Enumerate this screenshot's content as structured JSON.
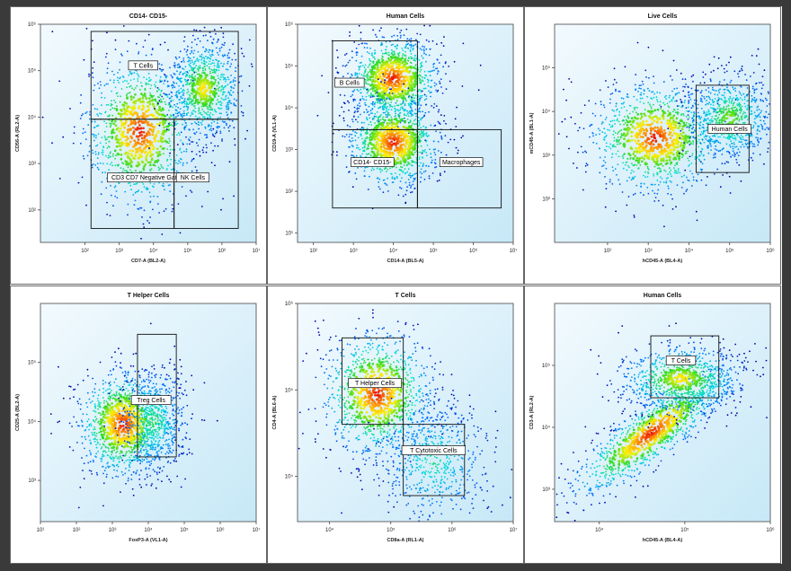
{
  "chart_data": [
    {
      "type": "scatter",
      "subtype": "flow-cytometry-density",
      "title": "CD14- CD15-",
      "xlabel": "CD7-A (BL2-A)",
      "ylabel": "CD56-A (RL2-A)",
      "xscale": "log",
      "yscale": "log",
      "xlim": [
        5,
        10000000
      ],
      "ylim": [
        20,
        1000000
      ],
      "xticks": [
        {
          "v": 100,
          "label": "10²"
        },
        {
          "v": 1000,
          "label": "10³"
        },
        {
          "v": 10000,
          "label": "10⁴"
        },
        {
          "v": 100000,
          "label": "10⁵"
        },
        {
          "v": 1000000,
          "label": "10⁶"
        },
        {
          "v": 10000000,
          "label": "10⁷"
        }
      ],
      "yticks": [
        {
          "v": 100,
          "label": "10²"
        },
        {
          "v": 1000,
          "label": "10³"
        },
        {
          "v": 10000,
          "label": "10⁴"
        },
        {
          "v": 100000,
          "label": "10⁵"
        },
        {
          "v": 1000000,
          "label": "10⁶"
        }
      ],
      "clusters": [
        {
          "x": 4000,
          "y": 5000,
          "sx": 0.45,
          "sy": 0.45,
          "intensity": 1.0
        },
        {
          "x": 300000,
          "y": 40000,
          "sx": 0.3,
          "sy": 0.3,
          "intensity": 0.8
        }
      ],
      "gates": [
        {
          "label": "T Cells",
          "x": [
            150,
            3000000
          ],
          "y": [
            9000,
            700000
          ],
          "label_at": [
            5000,
            130000
          ]
        },
        {
          "label": "CD3 CD7 Negative Gate",
          "x": [
            150,
            40000
          ],
          "y": [
            40,
            9000
          ],
          "label_at": [
            6000,
            500
          ]
        },
        {
          "label": "NK Cells",
          "x": [
            40000,
            3000000
          ],
          "y": [
            40,
            9000
          ],
          "label_at": [
            140000,
            500
          ]
        }
      ]
    },
    {
      "type": "scatter",
      "subtype": "flow-cytometry-density",
      "title": "Human Cells",
      "xlabel": "CD14-A (BL5-A)",
      "ylabel": "CD19-A (VL1-A)",
      "xscale": "log",
      "yscale": "log",
      "xlim": [
        40,
        10000000
      ],
      "ylim": [
        6,
        1000000
      ],
      "xticks": [
        {
          "v": 100,
          "label": "10²"
        },
        {
          "v": 1000,
          "label": "10³"
        },
        {
          "v": 10000,
          "label": "10⁴"
        },
        {
          "v": 100000,
          "label": "10⁵"
        },
        {
          "v": 1000000,
          "label": "10⁶"
        },
        {
          "v": 10000000,
          "label": "10⁷"
        }
      ],
      "yticks": [
        {
          "v": 10,
          "label": "10¹"
        },
        {
          "v": 100,
          "label": "10²"
        },
        {
          "v": 1000,
          "label": "10³"
        },
        {
          "v": 10000,
          "label": "10⁴"
        },
        {
          "v": 100000,
          "label": "10⁵"
        },
        {
          "v": 1000000,
          "label": "10⁶"
        }
      ],
      "clusters": [
        {
          "x": 10000,
          "y": 50000,
          "sx": 0.32,
          "sy": 0.28,
          "intensity": 1.0
        },
        {
          "x": 10000,
          "y": 1500,
          "sx": 0.32,
          "sy": 0.3,
          "intensity": 1.0
        }
      ],
      "gates": [
        {
          "label": "B Cells",
          "x": [
            300,
            40000
          ],
          "y": [
            3000,
            400000
          ],
          "label_at": [
            800,
            40000
          ]
        },
        {
          "label": "CD14- CD15-",
          "x": [
            300,
            40000
          ],
          "y": [
            40,
            3000
          ],
          "label_at": [
            3000,
            500
          ]
        },
        {
          "label": "Macrophages",
          "x": [
            40000,
            5000000
          ],
          "y": [
            40,
            3000
          ],
          "label_at": [
            500000,
            500
          ]
        }
      ]
    },
    {
      "type": "scatter",
      "subtype": "flow-cytometry-density",
      "title": "Live Cells",
      "xlabel": "hCD45-A (BL4-A)",
      "ylabel": "mCD45-A (BL1-A)",
      "xscale": "log",
      "yscale": "log",
      "xlim": [
        5,
        1000000
      ],
      "ylim": [
        10,
        1000000
      ],
      "xticks": [
        {
          "v": 100,
          "label": "10²"
        },
        {
          "v": 1000,
          "label": "10³"
        },
        {
          "v": 10000,
          "label": "10⁴"
        },
        {
          "v": 100000,
          "label": "10⁵"
        },
        {
          "v": 1000000,
          "label": "10⁶"
        }
      ],
      "yticks": [
        {
          "v": 100,
          "label": "10²"
        },
        {
          "v": 1000,
          "label": "10³"
        },
        {
          "v": 10000,
          "label": "10⁴"
        },
        {
          "v": 100000,
          "label": "10⁵"
        }
      ],
      "clusters": [
        {
          "x": 1500,
          "y": 2500,
          "sx": 0.45,
          "sy": 0.35,
          "intensity": 1.0
        },
        {
          "x": 100000,
          "y": 7000,
          "sx": 0.3,
          "sy": 0.28,
          "intensity": 0.7
        }
      ],
      "gates": [
        {
          "label": "Human Cells",
          "x": [
            15000,
            300000
          ],
          "y": [
            400,
            40000
          ],
          "label_at": [
            100000,
            4000
          ]
        }
      ]
    },
    {
      "type": "scatter",
      "subtype": "flow-cytometry-density",
      "title": "T Helper Cells",
      "xlabel": "FoxP3-A (VL1-A)",
      "ylabel": "CD25-A (BL2-A)",
      "xscale": "log",
      "yscale": "log",
      "xlim": [
        10,
        10000000
      ],
      "ylim": [
        200,
        1000000
      ],
      "xticks": [
        {
          "v": 10,
          "label": "10¹"
        },
        {
          "v": 100,
          "label": "10²"
        },
        {
          "v": 1000,
          "label": "10³"
        },
        {
          "v": 10000,
          "label": "10⁴"
        },
        {
          "v": 100000,
          "label": "10⁵"
        },
        {
          "v": 1000000,
          "label": "10⁶"
        },
        {
          "v": 10000000,
          "label": "10⁷"
        }
      ],
      "yticks": [
        {
          "v": 1000,
          "label": "10³"
        },
        {
          "v": 10000,
          "label": "10⁴"
        },
        {
          "v": 100000,
          "label": "10⁵"
        }
      ],
      "clusters": [
        {
          "x": 2000,
          "y": 9000,
          "sx": 0.35,
          "sy": 0.25,
          "intensity": 1.0
        },
        {
          "x": 15000,
          "y": 10000,
          "sx": 0.25,
          "sy": 0.25,
          "intensity": 0.6
        }
      ],
      "gates": [
        {
          "label": "Treg Cells",
          "x": [
            5000,
            60000
          ],
          "y": [
            2500,
            300000
          ],
          "label_at": [
            12000,
            23000
          ]
        }
      ]
    },
    {
      "type": "scatter",
      "subtype": "flow-cytometry-density",
      "title": "T Cells",
      "xlabel": "CD8a-A (RL1-A)",
      "ylabel": "CD4-A (BL6-A)",
      "xscale": "log",
      "yscale": "log",
      "xlim": [
        3000,
        10000000
      ],
      "ylim": [
        3000,
        1000000
      ],
      "xticks": [
        {
          "v": 10000,
          "label": "10⁴"
        },
        {
          "v": 100000,
          "label": "10⁵"
        },
        {
          "v": 1000000,
          "label": "10⁶"
        },
        {
          "v": 10000000,
          "label": "10⁷"
        }
      ],
      "yticks": [
        {
          "v": 10000,
          "label": "10⁴"
        },
        {
          "v": 100000,
          "label": "10⁵"
        },
        {
          "v": 1000000,
          "label": "10⁶"
        }
      ],
      "clusters": [
        {
          "x": 60000,
          "y": 90000,
          "sx": 0.25,
          "sy": 0.2,
          "intensity": 1.0
        },
        {
          "x": 500000,
          "y": 15000,
          "sx": 0.25,
          "sy": 0.2,
          "intensity": 0.55
        }
      ],
      "gates": [
        {
          "label": "T Helper Cells",
          "x": [
            16000,
            160000
          ],
          "y": [
            40000,
            400000
          ],
          "label_at": [
            55000,
            120000
          ]
        },
        {
          "label": "T Cytotoxic Cells",
          "x": [
            160000,
            1600000
          ],
          "y": [
            6000,
            40000
          ],
          "label_at": [
            500000,
            20000
          ]
        }
      ]
    },
    {
      "type": "scatter",
      "subtype": "flow-cytometry-density",
      "title": "Human Cells",
      "xlabel": "hCD45-A (BL4-A)",
      "ylabel": "CD3-A (RL2-A)",
      "xscale": "log",
      "yscale": "log",
      "xlim": [
        3000,
        1000000
      ],
      "ylim": [
        300,
        1000000
      ],
      "xticks": [
        {
          "v": 10000,
          "label": "10⁴"
        },
        {
          "v": 100000,
          "label": "10⁵"
        },
        {
          "v": 1000000,
          "label": "10⁶"
        }
      ],
      "yticks": [
        {
          "v": 1000,
          "label": "10³"
        },
        {
          "v": 10000,
          "label": "10⁴"
        },
        {
          "v": 100000,
          "label": "10⁵"
        }
      ],
      "clusters": [
        {
          "x": 40000,
          "y": 8000,
          "sx": 0.25,
          "sy": 0.28,
          "rho": 0.85,
          "intensity": 1.0
        },
        {
          "x": 90000,
          "y": 60000,
          "sx": 0.2,
          "sy": 0.15,
          "intensity": 0.8
        }
      ],
      "gates": [
        {
          "label": "T Cells",
          "x": [
            40000,
            250000
          ],
          "y": [
            30000,
            300000
          ],
          "label_at": [
            90000,
            120000
          ]
        }
      ]
    }
  ]
}
